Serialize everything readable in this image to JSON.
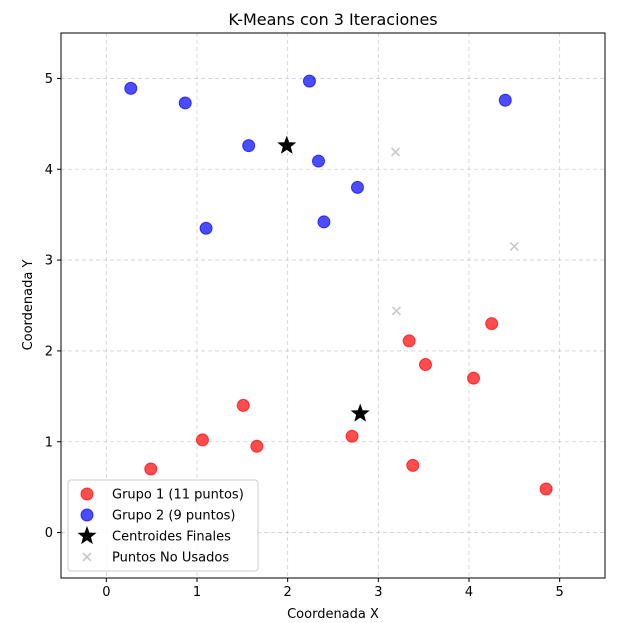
{
  "chart_data": {
    "type": "scatter",
    "title": "K-Means con 3 Iteraciones",
    "xlabel": "Coordenada X",
    "ylabel": "Coordenada Y",
    "xlim": [
      -0.5,
      5.5
    ],
    "ylim": [
      -0.5,
      5.5
    ],
    "xticks": [
      0,
      1,
      2,
      3,
      4,
      5
    ],
    "yticks": [
      0,
      1,
      2,
      3,
      4,
      5
    ],
    "grid": true,
    "legend_position": "lower-left",
    "series": [
      {
        "name": "Grupo 1 (11 puntos)",
        "marker": "circle",
        "color": "#ff0000",
        "points": [
          [
            0.49,
            0.7
          ],
          [
            1.06,
            1.02
          ],
          [
            1.51,
            1.4
          ],
          [
            1.66,
            0.95
          ],
          [
            2.71,
            1.06
          ],
          [
            3.34,
            2.11
          ],
          [
            3.52,
            1.85
          ],
          [
            3.38,
            0.74
          ],
          [
            4.05,
            1.7
          ],
          [
            4.25,
            2.3
          ],
          [
            4.85,
            0.48
          ]
        ]
      },
      {
        "name": "Grupo 2 (9 puntos)",
        "marker": "circle",
        "color": "#0000ff",
        "points": [
          [
            0.27,
            4.89
          ],
          [
            0.87,
            4.73
          ],
          [
            1.1,
            3.35
          ],
          [
            1.57,
            4.26
          ],
          [
            2.24,
            4.97
          ],
          [
            2.34,
            4.09
          ],
          [
            2.4,
            3.42
          ],
          [
            2.77,
            3.8
          ],
          [
            4.4,
            4.76
          ]
        ]
      },
      {
        "name": "Centroides Finales",
        "marker": "star",
        "color": "#000000",
        "points": [
          [
            1.99,
            4.26
          ],
          [
            2.8,
            1.31
          ]
        ]
      },
      {
        "name": "Puntos No Usados",
        "marker": "x",
        "color": "#c8c8c8",
        "points": [
          [
            3.19,
            4.19
          ],
          [
            3.2,
            2.44
          ],
          [
            4.5,
            3.15
          ]
        ]
      }
    ]
  }
}
